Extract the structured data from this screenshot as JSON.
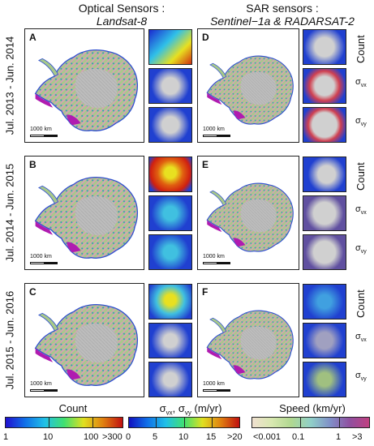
{
  "headers": {
    "optical_title": "Optical Sensors :",
    "optical_sub": "Landsat-8",
    "sar_title": "SAR sensors :",
    "sar_sub": "Sentinel−1a & RADARSAT-2"
  },
  "rows": [
    {
      "label": "Jul. 2013 - Jun. 2014",
      "left_letter": "A",
      "right_letter": "D"
    },
    {
      "label": "Jul. 2014 - Jun. 2015",
      "left_letter": "B",
      "right_letter": "E"
    },
    {
      "label": "Jul. 2015 - Jun. 2016",
      "left_letter": "C",
      "right_letter": "F"
    }
  ],
  "scalebar_label": "1000 km",
  "side_labels": {
    "count": "Count",
    "sigma": "σ",
    "sub_vx": "vx",
    "sub_vy": "vy"
  },
  "colorbars": {
    "count": {
      "title": "Count",
      "ticks": [
        "1",
        "10",
        "100",
        ">300"
      ]
    },
    "sigma": {
      "title_sigma": "σ",
      "sub_vx": "vx",
      "sep": ", ",
      "sub_vy": "vy",
      "unit": " (m/yr)",
      "ticks": [
        "0",
        "5",
        "10",
        "15",
        ">20"
      ]
    },
    "speed": {
      "title": "Speed (km/yr)",
      "ticks": [
        "<0.001",
        "0.1",
        "1",
        ">3"
      ]
    }
  },
  "colors": {
    "ice_grey": "#bdbdbd",
    "speed_green": "#a8c98a",
    "speed_pink": "#d8a0b8",
    "magenta": "#b01bb0",
    "blue_edge": "#3050d0"
  }
}
